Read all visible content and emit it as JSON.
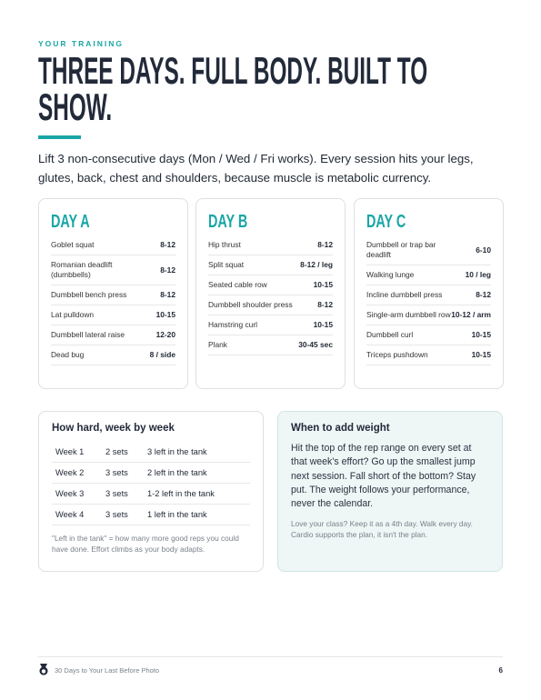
{
  "header": {
    "eyebrow": "YOUR TRAINING",
    "title": "THREE DAYS. FULL BODY. BUILT TO SHOW.",
    "intro": "Lift 3 non-consecutive days (Mon / Wed / Fri works). Every session hits your legs, glutes, back, chest and shoulders, because muscle is metabolic currency."
  },
  "days": [
    {
      "title": "DAY A",
      "rows": [
        [
          "Goblet squat",
          "8-12"
        ],
        [
          "Romanian deadlift (dumbbells)",
          "8-12"
        ],
        [
          "Dumbbell bench press",
          "8-12"
        ],
        [
          "Lat pulldown",
          "10-15"
        ],
        [
          "Dumbbell lateral raise",
          "12-20"
        ],
        [
          "Dead bug",
          "8 / side"
        ]
      ]
    },
    {
      "title": "DAY B",
      "rows": [
        [
          "Hip thrust",
          "8-12"
        ],
        [
          "Split squat",
          "8-12 / leg"
        ],
        [
          "Seated cable row",
          "10-15"
        ],
        [
          "Dumbbell shoulder press",
          "8-12"
        ],
        [
          "Hamstring curl",
          "10-15"
        ],
        [
          "Plank",
          "30-45 sec"
        ]
      ]
    },
    {
      "title": "DAY C",
      "rows": [
        [
          "Dumbbell or trap bar deadlift",
          "6-10"
        ],
        [
          "Walking lunge",
          "10 / leg"
        ],
        [
          "Incline dumbbell press",
          "8-12"
        ],
        [
          "Single-arm dumbbell row",
          "10-12 / arm"
        ],
        [
          "Dumbbell curl",
          "10-15"
        ],
        [
          "Triceps pushdown",
          "10-15"
        ]
      ]
    }
  ],
  "intensity": {
    "title": "How hard, week by week",
    "rows": [
      [
        "Week 1",
        "2 sets",
        "3 left in the tank"
      ],
      [
        "Week 2",
        "3 sets",
        "2 left in the tank"
      ],
      [
        "Week 3",
        "3 sets",
        "1-2 left in the tank"
      ],
      [
        "Week 4",
        "3 sets",
        "1 left in the tank"
      ]
    ],
    "note": "\"Left in the tank\" = how many more good reps you could have done. Effort climbs as your body adapts."
  },
  "weight": {
    "title": "When to add weight",
    "body": "Hit the top of the rep range on every set at that week's effort? Go up the smallest jump next session. Fall short of the bottom? Stay put. The weight follows your performance, never the calendar.",
    "note": "Love your class? Keep it as a 4th day. Walk every day. Cardio supports the plan, it isn't the plan."
  },
  "footer": {
    "text": "30 Days to Your Last Before Photo",
    "page": "6"
  }
}
